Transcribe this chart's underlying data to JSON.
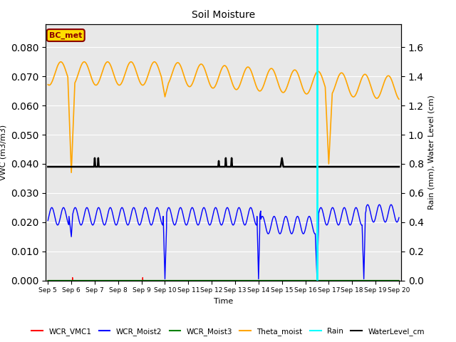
{
  "title": "Soil Moisture",
  "xlabel": "Time",
  "ylabel_left": "VWC (m3/m3)",
  "ylabel_right": "Rain (mm), Water Level (cm)",
  "ylim_left": [
    0,
    0.088
  ],
  "ylim_right": [
    0.0,
    1.76
  ],
  "yticks_left": [
    0.0,
    0.01,
    0.02,
    0.03,
    0.04,
    0.05,
    0.06,
    0.07,
    0.08
  ],
  "yticks_right": [
    0.0,
    0.2,
    0.4,
    0.6,
    0.8,
    1.0,
    1.2,
    1.4,
    1.6
  ],
  "xtick_labels": [
    "Sep 5",
    "Sep 6",
    "Sep 7",
    "Sep 8",
    "Sep 9",
    "Sep 10",
    "Sep 11",
    "Sep 12",
    "Sep 13",
    "Sep 14",
    "Sep 15",
    "Sep 16",
    "Sep 17",
    "Sep 18",
    "Sep 19",
    "Sep 20"
  ],
  "bg_color": "#e8e8e8",
  "annotation_box_text": "BC_met",
  "annotation_box_color": "#ffdd00",
  "annotation_box_edge": "#8b0000",
  "figsize": [
    6.4,
    4.8
  ],
  "dpi": 100
}
